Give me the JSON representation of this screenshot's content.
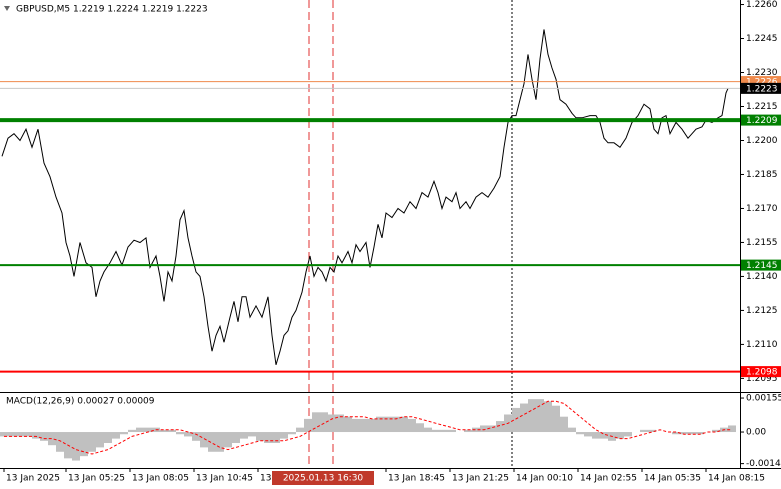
{
  "chart_data": [
    {
      "type": "line",
      "title": "GBPUSD,M5 1.2219 1.2224 1.2219 1.2223",
      "x": [
        -1,
        2,
        5,
        8,
        11,
        14,
        17,
        20,
        23,
        26,
        29,
        31,
        33,
        35,
        38,
        41,
        44,
        46,
        48,
        50,
        53,
        56,
        59,
        62,
        65,
        68,
        71,
        73,
        76,
        78,
        80,
        82,
        84,
        86,
        88,
        90,
        92,
        94,
        96,
        98,
        100,
        102,
        104,
        106,
        108,
        110,
        113,
        115,
        117,
        119,
        121,
        123,
        126,
        129,
        132,
        134,
        136,
        138,
        140,
        142,
        144,
        146,
        149,
        151,
        153,
        155,
        157,
        159,
        161,
        163,
        165,
        167,
        169,
        172,
        174,
        176,
        178,
        181,
        183,
        185,
        187,
        189,
        191,
        194,
        197,
        200,
        203,
        206,
        209,
        212,
        215,
        217,
        219,
        221,
        224,
        226,
        228,
        231,
        233,
        236,
        239,
        242,
        245,
        248,
        250,
        252,
        254,
        256,
        258,
        260,
        262,
        264,
        266,
        268,
        270,
        272,
        274,
        276,
        278,
        281,
        284,
        286,
        289,
        293,
        296,
        298,
        300,
        302,
        305,
        308,
        311,
        314,
        317,
        320,
        323,
        325,
        327,
        329,
        331,
        333,
        336,
        339,
        342,
        344,
        346,
        349,
        351,
        354,
        357,
        359,
        361,
        362
      ],
      "series": [
        {
          "color": "#000000",
          "values": [
            1.2193,
            1.2201,
            1.2203,
            1.22,
            1.2205,
            1.2197,
            1.2205,
            1.219,
            1.2184,
            1.2175,
            1.2168,
            1.2155,
            1.2149,
            1.214,
            1.2155,
            1.2146,
            1.2144,
            1.2131,
            1.2138,
            1.2142,
            1.2146,
            1.2151,
            1.2145,
            1.2153,
            1.2156,
            1.2155,
            1.2157,
            1.2144,
            1.2149,
            1.214,
            1.2129,
            1.2142,
            1.2138,
            1.2149,
            1.2165,
            1.2169,
            1.2157,
            1.2149,
            1.2142,
            1.214,
            1.2131,
            1.2118,
            1.2107,
            1.2114,
            1.2118,
            1.2111,
            1.2122,
            1.2129,
            1.212,
            1.2131,
            1.2131,
            1.2122,
            1.2127,
            1.2122,
            1.2131,
            1.2114,
            1.2101,
            1.2107,
            1.2114,
            1.2116,
            1.2122,
            1.2125,
            1.2133,
            1.2142,
            1.2149,
            1.214,
            1.2144,
            1.2142,
            1.2138,
            1.2144,
            1.2142,
            1.2149,
            1.2146,
            1.2151,
            1.2146,
            1.2154,
            1.2151,
            1.2155,
            1.2144,
            1.2153,
            1.2163,
            1.2157,
            1.2168,
            1.2166,
            1.217,
            1.2168,
            1.2173,
            1.217,
            1.2177,
            1.2175,
            1.2182,
            1.2177,
            1.217,
            1.2175,
            1.2173,
            1.2177,
            1.217,
            1.2173,
            1.217,
            1.2175,
            1.2177,
            1.2175,
            1.2179,
            1.2184,
            1.2197,
            1.2208,
            1.2211,
            1.2211,
            1.2218,
            1.2225,
            1.2238,
            1.2227,
            1.2218,
            1.2236,
            1.2249,
            1.2238,
            1.2232,
            1.2227,
            1.2218,
            1.2216,
            1.2212,
            1.221,
            1.221,
            1.2211,
            1.2211,
            1.2208,
            1.2201,
            1.2199,
            1.2199,
            1.2197,
            1.2201,
            1.2208,
            1.2211,
            1.2216,
            1.2214,
            1.2205,
            1.2203,
            1.221,
            1.2211,
            1.2203,
            1.2208,
            1.2205,
            1.2201,
            1.2203,
            1.2205,
            1.2206,
            1.2209,
            1.2208,
            1.221,
            1.2211,
            1.2221,
            1.2223
          ]
        }
      ],
      "xlim": [
        -2,
        368
      ],
      "ylim": [
        1.2089,
        1.2262
      ],
      "yticks": [
        {
          "value": 1.226,
          "label": "1.2260"
        },
        1.2245,
        {
          "value": 1.223,
          "label": "1.2230"
        },
        1.2215,
        {
          "value": 1.22,
          "label": "1.2200"
        },
        1.2185,
        {
          "value": 1.217,
          "label": "1.2170"
        },
        1.2155,
        {
          "value": 1.214,
          "label": "1.2140"
        },
        1.2125,
        {
          "value": 1.211,
          "label": "1.2110"
        },
        1.2095
      ],
      "xticks": [
        {
          "value": 0,
          "label": "13 Jan 2025"
        },
        {
          "value": 31,
          "label": "13 Jan 05:25"
        },
        {
          "value": 63,
          "label": "13 Jan 08:05"
        },
        {
          "value": 95,
          "label": "13 Jan 10:45"
        },
        {
          "value": 127,
          "label": "13 Jan 13:25"
        },
        {
          "value": 191,
          "label": "13 Jan 18:45"
        },
        {
          "value": 223,
          "label": "13 Jan 21:25"
        },
        {
          "value": 255,
          "label": "14 Jan 00:10"
        },
        {
          "value": 287,
          "label": "14 Jan 02:55"
        },
        {
          "value": 319,
          "label": "14 Jan 05:35"
        },
        {
          "value": 351,
          "label": "14 Jan 08:15"
        }
      ],
      "hlines": [
        {
          "value": 1.2226,
          "color": "#ef8a4c",
          "box_color": "#ef8a4c",
          "width": 1
        },
        {
          "value": 1.2223,
          "color": "#c8c8c8",
          "box_color": "#000000",
          "width": 1
        },
        {
          "value": 1.2209,
          "color": "#008000",
          "box_color": "#008000",
          "width": 4
        },
        {
          "value": 1.2145,
          "color": "#008000",
          "box_color": "#008000",
          "width": 2
        },
        {
          "value": 1.2098,
          "color": "#ff0000",
          "box_color": "#ff0000",
          "width": 2
        }
      ],
      "crosshair_label": "2025.01.13 16:30",
      "grid": false
    },
    {
      "type": "bar",
      "title": "MACD(12,26,9) 0.00027 0.00009",
      "x": [
        0,
        4,
        8,
        12,
        16,
        20,
        24,
        28,
        32,
        36,
        40,
        44,
        48,
        52,
        56,
        60,
        64,
        68,
        72,
        76,
        80,
        84,
        88,
        92,
        96,
        100,
        104,
        108,
        112,
        116,
        120,
        124,
        128,
        132,
        136,
        140,
        144,
        148,
        152,
        156,
        160,
        164,
        168,
        172,
        176,
        180,
        184,
        188,
        192,
        196,
        200,
        204,
        208,
        212,
        216,
        220,
        224,
        228,
        232,
        236,
        240,
        244,
        248,
        252,
        256,
        260,
        264,
        268,
        272,
        276,
        280,
        284,
        288,
        292,
        296,
        300,
        304,
        308,
        312,
        316,
        320,
        324,
        328,
        332,
        336,
        340,
        344,
        348,
        352,
        356,
        360,
        364
      ],
      "series": [
        {
          "type": "bar",
          "color": "#c0c0c0",
          "values": [
            -0.0002,
            -0.0002,
            -0.0002,
            -0.0002,
            -0.0003,
            -0.0004,
            -0.0006,
            -0.0009,
            -0.0012,
            -0.0013,
            -0.0011,
            -0.0009,
            -0.0007,
            -0.0005,
            -0.0003,
            -0.0001,
            0.0001,
            0.0002,
            0.0002,
            0.0002,
            0.0001,
            0.0001,
            -0.0001,
            -0.0002,
            -0.0004,
            -0.0007,
            -0.0009,
            -0.0009,
            -0.0007,
            -0.0005,
            -0.0003,
            -0.0002,
            -0.0004,
            -0.0005,
            -0.0005,
            -0.0003,
            -0.0001,
            0.0002,
            0.0006,
            0.0009,
            0.0009,
            0.0008,
            0.0008,
            0.0007,
            0.0006,
            0.0006,
            0.0006,
            0.0007,
            0.0007,
            0.0007,
            0.0007,
            0.0006,
            0.0004,
            0.0002,
            0.0001,
            0.0001,
            0.0001,
            0,
            0.0001,
            0.0002,
            0.0003,
            0.0003,
            0.0005,
            0.0008,
            0.0011,
            0.0013,
            0.0015,
            0.0015,
            0.0014,
            0.0012,
            0.0007,
            0.0002,
            -0.0001,
            -0.0002,
            -0.0003,
            -0.0003,
            -0.0004,
            -0.0003,
            -0.0002,
            0,
            0.0001,
            0.0001,
            0,
            0,
            -0.0001,
            -0.0001,
            -0.0001,
            -0.0001,
            0,
            0.0001,
            0.0002,
            0.0003
          ]
        },
        {
          "type": "line",
          "color": "#ff0000",
          "dashed": true,
          "values": [
            -0.0002,
            -0.0002,
            -0.0002,
            -0.0002,
            -0.0002,
            -0.0003,
            -0.0003,
            -0.0004,
            -0.0006,
            -0.0008,
            -0.0009,
            -0.001,
            -0.0009,
            -0.0008,
            -0.0006,
            -0.0004,
            -0.0002,
            -0.0001,
            0,
            0.0001,
            0.0001,
            0.0001,
            0.0001,
            0,
            -0.0001,
            -0.0003,
            -0.0005,
            -0.0007,
            -0.0008,
            -0.0007,
            -0.0006,
            -0.0005,
            -0.0004,
            -0.0004,
            -0.0004,
            -0.0004,
            -0.0003,
            -0.0002,
            0,
            0.0002,
            0.0004,
            0.0006,
            0.0007,
            0.0007,
            0.0007,
            0.0007,
            0.0006,
            0.0006,
            0.0006,
            0.0006,
            0.0007,
            0.0007,
            0.0006,
            0.0005,
            0.0004,
            0.0003,
            0.0002,
            0.0001,
            0.0001,
            0.0001,
            0.0001,
            0.0002,
            0.0003,
            0.0004,
            0.0006,
            0.0008,
            0.001,
            0.0012,
            0.0014,
            0.0014,
            0.0013,
            0.001,
            0.0007,
            0.0004,
            0.0001,
            -0.0001,
            -0.0002,
            -0.0003,
            -0.0003,
            -0.0002,
            -0.0001,
            0,
            0.0001,
            0,
            0,
            -0.0001,
            -0.0001,
            -0.0001,
            0,
            0,
            0.0001,
            0.0001
          ]
        }
      ],
      "xlim": [
        -2,
        368
      ],
      "ylim": [
        -0.00164,
        0.00178
      ],
      "yticks": [
        0.00155,
        {
          "value": 0,
          "label": "0.00"
        },
        -0.00144
      ]
    }
  ]
}
